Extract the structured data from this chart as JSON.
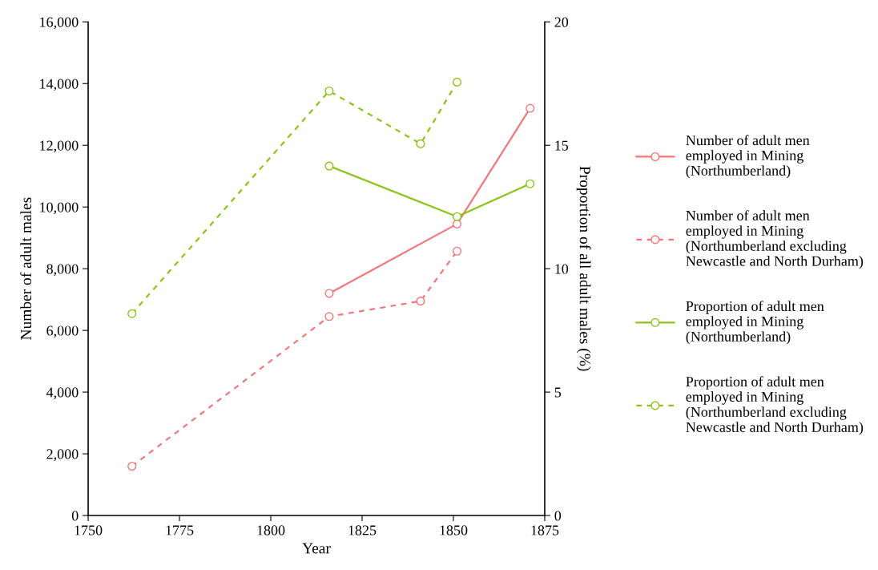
{
  "chart_data": {
    "type": "line",
    "xlabel": "Year",
    "ylabel": "Number of adult males",
    "y2label": "Proportion of all adult males (%)",
    "xlim": [
      1750,
      1875
    ],
    "xticks": [
      1750,
      1775,
      1800,
      1825,
      1850,
      1875
    ],
    "ylim": [
      0,
      16000
    ],
    "yticks": [
      {
        "value": 0,
        "label": "0"
      },
      {
        "value": 2000,
        "label": "2,000"
      },
      {
        "value": 4000,
        "label": "4,000"
      },
      {
        "value": 6000,
        "label": "6,000"
      },
      {
        "value": 8000,
        "label": "8,000"
      },
      {
        "value": 10000,
        "label": "10,000"
      },
      {
        "value": 12000,
        "label": "12,000"
      },
      {
        "value": 14000,
        "label": "14,000"
      },
      {
        "value": 16000,
        "label": "16,000"
      }
    ],
    "y2lim": [
      0,
      20
    ],
    "y2ticks": [
      0,
      5,
      10,
      15,
      20
    ],
    "grid": false,
    "legend": "right",
    "marker": "circle",
    "series": [
      {
        "name": "Number of adult men\nemployed in Mining\n(Northumberland)",
        "color": "#f4777a",
        "line_style": "solid",
        "x": [
          1816,
          1851,
          1871
        ],
        "values": [
          7200,
          9450,
          13200
        ]
      },
      {
        "name": "Number of adult men\nemployed in Mining\n(Northumberland excluding\nNewcastle and North Durham)",
        "color": "#f4777a",
        "line_style": "dashed",
        "x": [
          1762,
          1816,
          1841,
          1851
        ],
        "values": [
          1600,
          6450,
          6950,
          8570
        ]
      },
      {
        "name": "Proportion of adult men\nemployed in Mining\n(Northumberland)",
        "color": "#8cc614",
        "line_style": "solid",
        "axis": "y2",
        "x": [
          1816,
          1851,
          1871
        ],
        "values": [
          14.16,
          12.11,
          13.44
        ]
      },
      {
        "name": "Proportion of adult men\nemployed in Mining\n(Northumberland excluding\nNewcastle and North Durham)",
        "color": "#8cc614",
        "line_style": "dashed",
        "axis": "y2",
        "x": [
          1762,
          1816,
          1841,
          1851
        ],
        "values": [
          8.18,
          17.2,
          15.06,
          17.56
        ]
      }
    ]
  }
}
